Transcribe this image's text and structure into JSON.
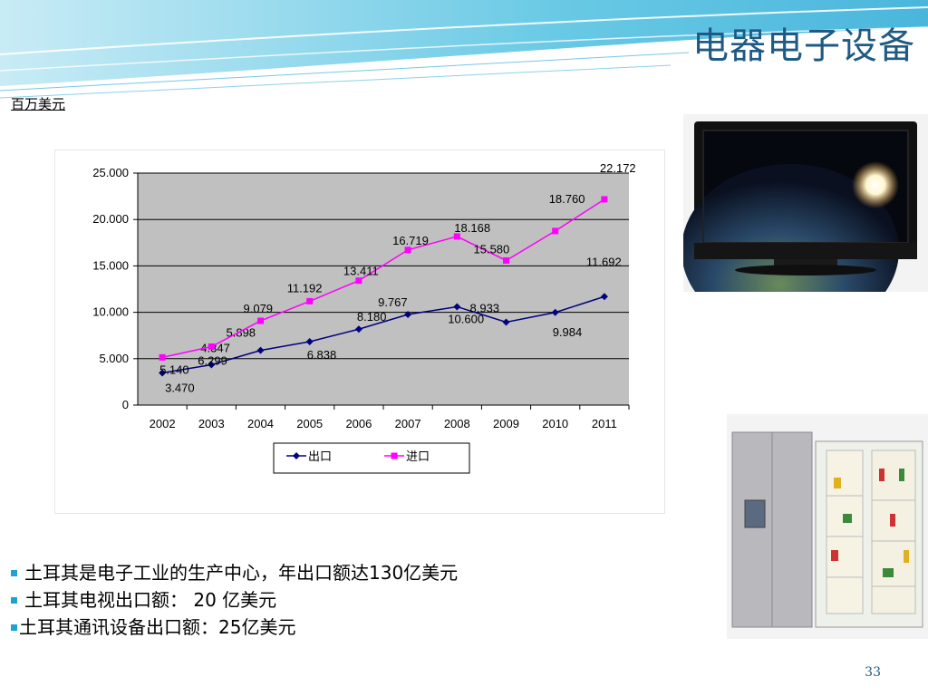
{
  "slide": {
    "title": "电器电子设备",
    "unit_label": "百万美元",
    "page_number": "33",
    "bullets": [
      "土耳其是电子工业的生产中心，年出口额达130亿美元",
      "土耳其电视出口额： 20 亿美元",
      "土耳其通讯设备出口额：25亿美元"
    ]
  },
  "colors": {
    "title": "#1f5a84",
    "bullet": "#1aa3d4",
    "export_line": "#00007f",
    "import_line": "#ff00ff",
    "plot_bg": "#c0c0c0"
  },
  "chart_data": {
    "type": "line",
    "title": "",
    "xlabel": "",
    "ylabel": "",
    "categories": [
      "2002",
      "2003",
      "2004",
      "2005",
      "2006",
      "2007",
      "2008",
      "2009",
      "2010",
      "2011"
    ],
    "y_ticks": [
      "0",
      "5.000",
      "10.000",
      "15.000",
      "20.000",
      "25.000"
    ],
    "ylim": [
      0,
      25
    ],
    "grid": true,
    "legend_position": "bottom",
    "series": [
      {
        "name": "出口",
        "color": "#00007f",
        "marker": "diamond",
        "values": [
          3.47,
          4.347,
          5.898,
          6.838,
          8.18,
          9.767,
          10.6,
          8.933,
          9.984,
          11.692
        ],
        "labels": [
          "3.470",
          "4.347",
          "5.898",
          "6.838",
          "8.180",
          "9.767",
          "10.600",
          "8.933",
          "9.984",
          "11.692"
        ]
      },
      {
        "name": "进口",
        "color": "#ff00ff",
        "marker": "square",
        "values": [
          5.14,
          6.299,
          9.079,
          11.192,
          13.411,
          16.719,
          18.168,
          15.58,
          18.76,
          22.172
        ],
        "labels": [
          "5.140",
          "6.299",
          "9.079",
          "11.192",
          "13.411",
          "16.719",
          "18.168",
          "15.580",
          "18.760",
          "22.172"
        ]
      }
    ]
  }
}
